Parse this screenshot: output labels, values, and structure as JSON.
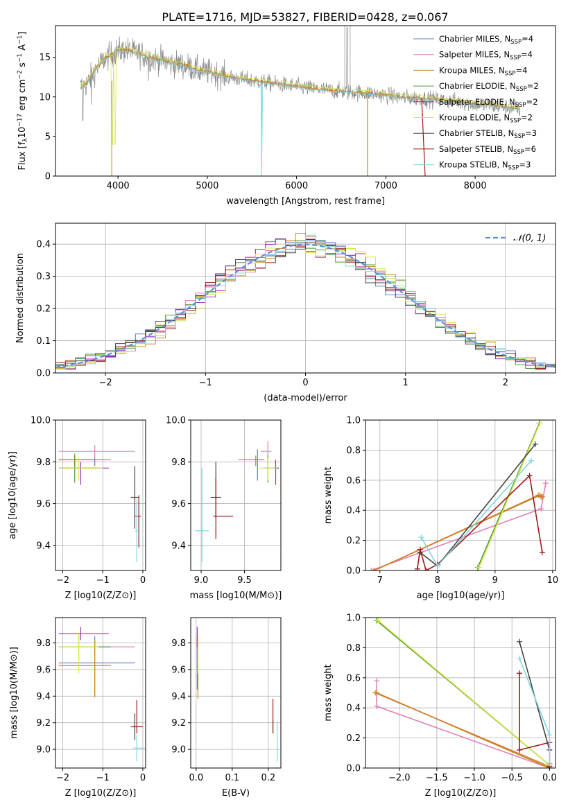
{
  "figure_title": "PLATE=1716, MJD=53827, FIBERID=0428, z=0.067",
  "colors": {
    "Chabrier MILES": "#5b7fc4",
    "Salpeter MILES": "#e47fb5",
    "Kroupa MILES": "#c48a1e",
    "Chabrier ELODIE": "#4a9a3a",
    "Salpeter ELODIE": "#9b2fc8",
    "Kroupa ELODIE": "#d8e84a",
    "Chabrier STELIB": "#444444",
    "Salpeter STELIB": "#a01818",
    "Kroupa STELIB": "#7fd8e0",
    "orange_combo": "#d47a2f",
    "normal_curve": "#5b8fd8"
  },
  "chart_data": [
    {
      "id": "spectrum",
      "type": "line",
      "title": "PLATE=1716, MJD=53827, FIBERID=0428, z=0.067",
      "xlabel": "wavelength [Angstrom, rest frame]",
      "ylabel": "Flux [f_λ 10^-17 erg cm^-2 s^-1 A^-1]",
      "xlim": [
        3300,
        8900
      ],
      "ylim": [
        0,
        19
      ],
      "xticks": [
        4000,
        5000,
        6000,
        7000,
        8000
      ],
      "yticks": [
        0,
        5,
        10,
        15
      ],
      "legend_position": "upper-right",
      "legend": [
        {
          "name": "Chabrier MILES",
          "nssp": "4"
        },
        {
          "name": "Salpeter MILES",
          "nssp": "4"
        },
        {
          "name": "Kroupa MILES",
          "nssp": "4"
        },
        {
          "name": "Chabrier ELODIE",
          "nssp": "2"
        },
        {
          "name": "Salpeter ELODIE",
          "nssp": "2"
        },
        {
          "name": "Kroupa ELODIE",
          "nssp": "2"
        },
        {
          "name": "Chabrier STELIB",
          "nssp": "3"
        },
        {
          "name": "Salpeter STELIB",
          "nssp": "6"
        },
        {
          "name": "Kroupa STELIB",
          "nssp": "3"
        }
      ],
      "continuum": {
        "x": [
          3580,
          3650,
          3750,
          3850,
          3950,
          4000,
          4100,
          4200,
          4300,
          4400,
          4500,
          4600,
          4700,
          4800,
          4900,
          5000,
          5200,
          5400,
          5600,
          5800,
          6000,
          6200,
          6400,
          6600,
          6800,
          7000,
          7200,
          7400,
          7600,
          7800,
          8000,
          8200,
          8400,
          8500
        ],
        "y": [
          11.2,
          11.6,
          13.5,
          14.8,
          15.5,
          15.8,
          15.9,
          15.6,
          15.2,
          14.8,
          14.6,
          14.2,
          14.1,
          13.8,
          13.3,
          13.2,
          12.6,
          12.2,
          11.9,
          11.6,
          11.3,
          11.0,
          10.8,
          10.6,
          10.5,
          10.2,
          9.9,
          9.8,
          9.6,
          9.4,
          9.1,
          8.9,
          8.6,
          8.4
        ]
      }
    },
    {
      "id": "residuals",
      "type": "line",
      "xlabel": "(data-model)/error",
      "ylabel": "Normed distribution",
      "xlim": [
        -2.5,
        2.5
      ],
      "ylim": [
        0,
        0.465
      ],
      "xticks": [
        -2,
        -1,
        0,
        1,
        2
      ],
      "yticks": [
        0.0,
        0.1,
        0.2,
        0.3,
        0.4
      ],
      "legend": [
        {
          "name": "𝒩(0, 1)"
        }
      ],
      "hist_edges_start": -2.5,
      "hist_bin_width": 0.1
    },
    {
      "id": "age_vs_Z",
      "type": "scatter",
      "xlabel": "Z [log10(Z/Z⊙)]",
      "ylabel": "age  [log10(age/yr)]",
      "xlim": [
        -2.18,
        0.07
      ],
      "ylim": [
        9.28,
        10.0
      ],
      "xticks": [
        -2,
        -1,
        0
      ],
      "yticks": [
        9.4,
        9.6,
        9.8,
        10.0
      ],
      "points": [
        {
          "model": "Chabrier MILES",
          "x": -1.2,
          "y": 9.81,
          "xerr": [
            0.9,
            0
          ],
          "yerr": [
            0.03,
            0.03
          ]
        },
        {
          "model": "Salpeter MILES",
          "x": -1.2,
          "y": 9.85,
          "xerr": [
            0.9,
            1.0
          ],
          "yerr": [
            0.03,
            0.03
          ]
        },
        {
          "model": "Kroupa MILES",
          "x": -1.7,
          "y": 9.81,
          "xerr": [
            0.4,
            0.9
          ],
          "yerr": [
            0.03,
            0.03
          ]
        },
        {
          "model": "Chabrier ELODIE",
          "x": -1.7,
          "y": 9.77,
          "xerr": [
            0.4,
            0.6
          ],
          "yerr": [
            0.07,
            0.06
          ]
        },
        {
          "model": "Salpeter ELODIE",
          "x": -1.55,
          "y": 9.77,
          "xerr": [
            0.55,
            0.7
          ],
          "yerr": [
            0.08,
            0.03
          ]
        },
        {
          "model": "Kroupa ELODIE",
          "x": -1.6,
          "y": 9.77,
          "xerr": [
            0.5,
            0.6
          ],
          "yerr": [
            0.06,
            0.05
          ]
        },
        {
          "model": "Chabrier STELIB",
          "x": -0.2,
          "y": 9.63,
          "xerr": [
            0.1,
            0.1
          ],
          "yerr": [
            0.15,
            0.15
          ]
        },
        {
          "model": "Salpeter STELIB",
          "x": -0.1,
          "y": 9.54,
          "xerr": [
            0.1,
            0.05
          ],
          "yerr": [
            0.15,
            0.1
          ]
        },
        {
          "model": "Kroupa STELIB",
          "x": -0.15,
          "y": 9.47,
          "xerr": [
            0.05,
            0.05
          ],
          "yerr": [
            0.15,
            0.15
          ]
        }
      ]
    },
    {
      "id": "age_vs_mass",
      "type": "scatter",
      "xlabel": "mass [log10(M/M⊙)]",
      "ylabel": "",
      "xlim": [
        8.88,
        9.92
      ],
      "ylim": [
        9.28,
        10.0
      ],
      "xticks": [
        9.0,
        9.5
      ],
      "yticks": [
        9.4,
        9.6,
        9.8,
        10.0
      ],
      "points": [
        {
          "model": "Chabrier MILES",
          "x": 9.65,
          "y": 9.81,
          "xerr": [
            0.05,
            0.05
          ],
          "yerr": [
            0.1,
            0.05
          ]
        },
        {
          "model": "Salpeter MILES",
          "x": 9.77,
          "y": 9.85,
          "xerr": [
            0.08,
            0.04
          ],
          "yerr": [
            0.1,
            0.05
          ]
        },
        {
          "model": "Kroupa MILES",
          "x": 9.63,
          "y": 9.81,
          "xerr": [
            0.2,
            0.1
          ],
          "yerr": [
            0.03,
            0.02
          ]
        },
        {
          "model": "Chabrier ELODIE",
          "x": 9.77,
          "y": 9.77,
          "xerr": [
            0.05,
            0.05
          ],
          "yerr": [
            0.07,
            0.06
          ]
        },
        {
          "model": "Salpeter ELODIE",
          "x": 9.86,
          "y": 9.77,
          "xerr": [
            0.04,
            0.04
          ],
          "yerr": [
            0.08,
            0.04
          ]
        },
        {
          "model": "Kroupa ELODIE",
          "x": 9.77,
          "y": 9.77,
          "xerr": [
            0.1,
            0.1
          ],
          "yerr": [
            0.06,
            0.05
          ]
        },
        {
          "model": "Chabrier STELIB",
          "x": 9.17,
          "y": 9.63,
          "xerr": [
            0.06,
            0.06
          ],
          "yerr": [
            0.1,
            0.17
          ]
        },
        {
          "model": "Salpeter STELIB",
          "x": 9.17,
          "y": 9.54,
          "xerr": [
            0.03,
            0.2
          ],
          "yerr": [
            0.11,
            0.18
          ]
        },
        {
          "model": "Kroupa STELIB",
          "x": 9.01,
          "y": 9.47,
          "xerr": [
            0.08,
            0.08
          ],
          "yerr": [
            0.15,
            0.3
          ]
        }
      ]
    },
    {
      "id": "mass_weight_vs_age",
      "type": "line",
      "xlabel": "age  [log10(age/yr)]",
      "ylabel": "mass weight",
      "xlim": [
        6.75,
        10.05
      ],
      "ylim": [
        0,
        1.0
      ],
      "xticks": [
        7,
        8,
        9,
        10
      ],
      "yticks": [
        0.0,
        0.2,
        0.4,
        0.6,
        0.8,
        1.0
      ],
      "series": [
        {
          "model": "Salpeter MILES",
          "points": [
            [
              6.85,
              0.0
            ],
            [
              9.8,
              0.41
            ],
            [
              9.88,
              0.58
            ]
          ]
        },
        {
          "model": "Kroupa MILES",
          "points": [
            [
              6.9,
              0.0
            ],
            [
              9.75,
              0.5
            ],
            [
              9.8,
              0.49
            ]
          ]
        },
        {
          "model": "orange_combo",
          "points": [
            [
              6.9,
              0.0
            ],
            [
              9.78,
              0.5
            ],
            [
              9.82,
              0.49
            ]
          ]
        },
        {
          "model": "Chabrier ELODIE",
          "points": [
            [
              8.7,
              0.02
            ],
            [
              9.77,
              0.98
            ]
          ]
        },
        {
          "model": "Kroupa ELODIE",
          "points": [
            [
              8.72,
              0.02
            ],
            [
              9.78,
              0.98
            ]
          ]
        },
        {
          "model": "Chabrier STELIB",
          "points": [
            [
              7.7,
              0.12
            ],
            [
              8.0,
              0.03
            ],
            [
              9.7,
              0.84
            ]
          ]
        },
        {
          "model": "Salpeter STELIB",
          "points": [
            [
              7.65,
              0.01
            ],
            [
              7.7,
              0.14
            ],
            [
              7.8,
              0.0
            ],
            [
              8.0,
              0.04
            ],
            [
              9.6,
              0.63
            ],
            [
              9.82,
              0.12
            ]
          ]
        },
        {
          "model": "Kroupa STELIB",
          "points": [
            [
              7.72,
              0.22
            ],
            [
              8.0,
              0.03
            ],
            [
              9.63,
              0.73
            ]
          ]
        }
      ]
    },
    {
      "id": "mass_vs_Z",
      "type": "scatter",
      "xlabel": "Z [log10(Z/Z⊙)]",
      "ylabel": "mass [log10(M/M⊙)]",
      "xlim": [
        -2.18,
        0.07
      ],
      "ylim": [
        8.86,
        9.99
      ],
      "xticks": [
        -2,
        -1,
        0
      ],
      "yticks": [
        9.0,
        9.2,
        9.4,
        9.6,
        9.8
      ],
      "points": [
        {
          "model": "Chabrier MILES",
          "x": -1.2,
          "y": 9.65,
          "xerr": [
            0.9,
            1.0
          ],
          "yerr": [
            0.25,
            0.2
          ]
        },
        {
          "model": "Salpeter MILES",
          "x": -1.2,
          "y": 9.77,
          "xerr": [
            0.9,
            1.0
          ],
          "yerr": [
            0.02,
            0.02
          ]
        },
        {
          "model": "Kroupa MILES",
          "x": -1.2,
          "y": 9.63,
          "xerr": [
            0.9,
            0.4
          ],
          "yerr": [
            0.24,
            0.2
          ]
        },
        {
          "model": "Chabrier ELODIE",
          "x": -1.6,
          "y": 9.77,
          "xerr": [
            0.5,
            0.8
          ],
          "yerr": [
            0.1,
            0.1
          ]
        },
        {
          "model": "Salpeter ELODIE",
          "x": -1.55,
          "y": 9.87,
          "xerr": [
            0.55,
            0.7
          ],
          "yerr": [
            0.05,
            0.05
          ]
        },
        {
          "model": "Kroupa ELODIE",
          "x": -1.6,
          "y": 9.77,
          "xerr": [
            0.5,
            0.5
          ],
          "yerr": [
            0.2,
            0.1
          ]
        },
        {
          "model": "Chabrier STELIB",
          "x": -0.2,
          "y": 9.17,
          "xerr": [
            0.1,
            0.05
          ],
          "yerr": [
            0.1,
            0.1
          ]
        },
        {
          "model": "Salpeter STELIB",
          "x": -0.15,
          "y": 9.17,
          "xerr": [
            0.1,
            0.15
          ],
          "yerr": [
            0.05,
            0.2
          ]
        },
        {
          "model": "Kroupa STELIB",
          "x": -0.15,
          "y": 9.01,
          "xerr": [
            0.1,
            0.2
          ],
          "yerr": [
            0.1,
            0.1
          ]
        }
      ]
    },
    {
      "id": "mass_vs_EBV",
      "type": "scatter",
      "xlabel": "E(B-V)",
      "ylabel": "",
      "xlim": [
        -0.015,
        0.235
      ],
      "ylim": [
        8.86,
        9.99
      ],
      "xticks": [
        0.0,
        0.1,
        0.2
      ],
      "yticks": [
        9.0,
        9.2,
        9.4,
        9.6,
        9.8
      ],
      "points": [
        {
          "model": "Chabrier MILES",
          "x": 0.003,
          "y": 9.65,
          "xerr": [
            0,
            0
          ],
          "yerr": [
            0.2,
            0.2
          ]
        },
        {
          "model": "Salpeter MILES",
          "x": 0.003,
          "y": 9.77,
          "xerr": [
            0,
            0
          ],
          "yerr": [
            0.12,
            0.1
          ]
        },
        {
          "model": "Kroupa MILES",
          "x": 0.005,
          "y": 9.63,
          "xerr": [
            0,
            0
          ],
          "yerr": [
            0.25,
            0.2
          ]
        },
        {
          "model": "Chabrier ELODIE",
          "x": 0.004,
          "y": 9.77,
          "xerr": [
            0,
            0
          ],
          "yerr": [
            0.1,
            0.1
          ]
        },
        {
          "model": "Salpeter ELODIE",
          "x": 0.003,
          "y": 9.87,
          "xerr": [
            0,
            0
          ],
          "yerr": [
            0.1,
            0.05
          ]
        },
        {
          "model": "Kroupa ELODIE",
          "x": 0.005,
          "y": 9.77,
          "xerr": [
            0,
            0
          ],
          "yerr": [
            0.2,
            0.1
          ]
        },
        {
          "model": "Chabrier STELIB",
          "x": 0.213,
          "y": 9.17,
          "xerr": [
            0,
            0
          ],
          "yerr": [
            0.05,
            0.05
          ]
        },
        {
          "model": "Salpeter STELIB",
          "x": 0.213,
          "y": 9.2,
          "xerr": [
            0,
            0
          ],
          "yerr": [
            0.08,
            0.18
          ]
        },
        {
          "model": "Kroupa STELIB",
          "x": 0.225,
          "y": 9.01,
          "xerr": [
            0,
            0
          ],
          "yerr": [
            0.1,
            0.2
          ]
        }
      ]
    },
    {
      "id": "mass_weight_vs_Z",
      "type": "line",
      "xlabel": "Z [log10(Z/Z⊙)]",
      "ylabel": "mass weight",
      "xlim": [
        -2.45,
        0.08
      ],
      "ylim": [
        0,
        1.0
      ],
      "xticks": [
        -2.0,
        -1.5,
        -1.0,
        -0.5,
        0.0
      ],
      "yticks": [
        0.0,
        0.2,
        0.4,
        0.6,
        0.8,
        1.0
      ],
      "series": [
        {
          "model": "Salpeter MILES",
          "points": [
            [
              -2.3,
              0.58
            ],
            [
              -2.3,
              0.41
            ],
            [
              0.0,
              0.0
            ]
          ]
        },
        {
          "model": "Kroupa MILES",
          "points": [
            [
              -2.3,
              0.5
            ],
            [
              0.0,
              0.0
            ]
          ]
        },
        {
          "model": "orange_combo",
          "points": [
            [
              -2.32,
              0.5
            ],
            [
              0.0,
              0.01
            ]
          ]
        },
        {
          "model": "Chabrier ELODIE",
          "points": [
            [
              -2.3,
              0.98
            ],
            [
              0.0,
              0.02
            ]
          ]
        },
        {
          "model": "Kroupa ELODIE",
          "points": [
            [
              -2.28,
              0.98
            ],
            [
              0.0,
              0.02
            ]
          ]
        },
        {
          "model": "Chabrier STELIB",
          "points": [
            [
              -0.4,
              0.84
            ],
            [
              0.0,
              0.12
            ],
            [
              0.0,
              0.03
            ]
          ]
        },
        {
          "model": "Salpeter STELIB",
          "points": [
            [
              -0.4,
              0.63
            ],
            [
              -0.4,
              0.12
            ],
            [
              0.0,
              0.17
            ],
            [
              0.0,
              0.01
            ]
          ]
        },
        {
          "model": "Kroupa STELIB",
          "points": [
            [
              -0.4,
              0.73
            ],
            [
              0.0,
              0.22
            ],
            [
              0.0,
              0.03
            ]
          ]
        }
      ]
    }
  ]
}
